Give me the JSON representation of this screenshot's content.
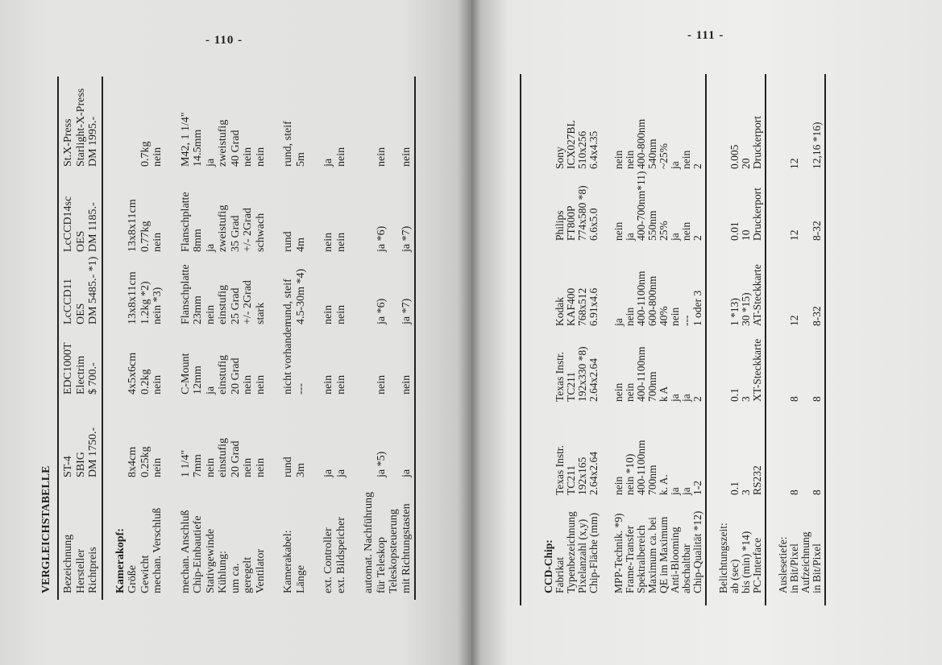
{
  "left_page": {
    "page_number": "- 110 -",
    "table": {
      "title": "VERGLEICHSTABELLE",
      "groups": [
        {
          "rows": [
            {
              "label": "Bezeichnung",
              "values": [
                "ST-4",
                "EDC1000T",
                "LcCCD11",
                "LcCCD14sc",
                "St.X-Press"
              ]
            },
            {
              "label": "Hersteller",
              "values": [
                "SBIG",
                "Electrim",
                "OES",
                "OES",
                "Starlight-X-Press"
              ]
            },
            {
              "label": "Richtpreis",
              "values": [
                "DM 1750.-",
                "$ 700.-",
                "DM 5485.- *1)",
                "DM 1185.-",
                "DM 1995.-"
              ]
            }
          ],
          "rule_after": true
        },
        {
          "rows": [
            {
              "label": "Kamerakopf:",
              "header": true,
              "values": []
            },
            {
              "label": "Größe",
              "values": [
                "8x4cm",
                "4x5x6cm",
                "13x8x11cm",
                "13x8x11cm",
                ""
              ]
            },
            {
              "label": "Gewicht",
              "values": [
                "0.25kg",
                "0.2kg",
                "1.2kg *2)",
                "0.77kg",
                "0.7kg"
              ]
            },
            {
              "label": "mechan. Verschluß",
              "values": [
                "nein",
                "nein",
                "nein *3)",
                "nein",
                "nein"
              ]
            }
          ]
        },
        {
          "rows": [
            {
              "label": "mechan. Anschluß",
              "values": [
                "1 1/4\"",
                "C-Mount",
                "Flanschplatte",
                "Flanschplatte",
                "M42, 1 1/4\""
              ]
            },
            {
              "label": "Chip-Einbautiefe",
              "values": [
                "7mm",
                "12mm",
                "23mm",
                "8mm",
                "14.5mm"
              ]
            },
            {
              "label": "Stativgewinde",
              "values": [
                "nein",
                "ja",
                "nein",
                "ja",
                "ja"
              ]
            },
            {
              "label": "Kühlung:",
              "values": [
                "einstufig",
                "einstufig",
                "einstufig",
                "zweistufig",
                "zweistufig"
              ]
            },
            {
              "label": "um ca.",
              "values": [
                "20 Grad",
                "20 Grad",
                "25 Grad",
                "35 Grad",
                "40 Grad"
              ]
            },
            {
              "label": "geregelt",
              "values": [
                "nein",
                "nein",
                "+/- 2Grad",
                "+/- 2Grad",
                "nein"
              ]
            },
            {
              "label": "Ventilator",
              "values": [
                "nein",
                "nein",
                "stark",
                "schwach",
                "nein"
              ]
            }
          ]
        },
        {
          "rows": [
            {
              "label": "Kamerakabel:",
              "values": [
                "rund",
                "nicht vorhanden",
                "rund, steif",
                "rund",
                "rund, steif"
              ]
            },
            {
              "label": "Länge",
              "values": [
                "3m",
                "---",
                "4.5-30m *4)",
                "4m",
                "5m"
              ]
            }
          ]
        },
        {
          "rows": [
            {
              "label": "ext. Controller",
              "values": [
                "ja",
                "nein",
                "nein",
                "nein",
                "ja"
              ]
            },
            {
              "label": "ext. Bildspeicher",
              "values": [
                "ja",
                "nein",
                "nein",
                "nein",
                "nein"
              ]
            }
          ]
        },
        {
          "rows": [
            {
              "label": "automat. Nachführung",
              "values": []
            },
            {
              "label": "für Teleskop",
              "values": [
                "ja *5)",
                "nein",
                "ja *6)",
                "ja *6)",
                "nein"
              ]
            },
            {
              "label": "Teleskopsteuerung",
              "values": []
            },
            {
              "label": "mit Richtungstasten",
              "values": [
                "ja",
                "nein",
                "ja *7)",
                "ja *7)",
                "nein"
              ]
            }
          ],
          "rule_after": true
        }
      ]
    }
  },
  "right_page": {
    "page_number": "- 111 -",
    "table": {
      "groups": [
        {
          "rows": [
            {
              "label": "CCD-Chip:",
              "header": true,
              "values": []
            },
            {
              "label": "Fabrikat",
              "values": [
                "Texas Instr.",
                "Texas Instr.",
                "Kodak",
                "Philips",
                "Sony"
              ]
            },
            {
              "label": "Typenbezeichnung",
              "values": [
                "TC211",
                "TC211",
                "KAF400",
                "FT800P",
                "ICX027BL"
              ]
            },
            {
              "label": "Pixelanzahl (x,y)",
              "values": [
                "192x165",
                "192x330 *8)",
                "768x512",
                "774x580 *8)",
                "510x256"
              ]
            },
            {
              "label": "Chip-Fläche (mm)",
              "values": [
                "2.64x2.64",
                "2.64x2.64",
                "6.91x4.6",
                "6.6x5.0",
                "6.4x4.35"
              ]
            }
          ]
        },
        {
          "rows": [
            {
              "label": "MPP-Technik. *9)",
              "values": [
                "nein",
                "nein",
                "ja",
                "nein",
                "nein"
              ]
            },
            {
              "label": "Frame-Transfer",
              "values": [
                "nein *10)",
                "nein",
                "nein",
                "ja",
                "nein"
              ]
            },
            {
              "label": "Spektralbereich",
              "values": [
                "400-1100nm",
                "400-1100nm",
                "400-1100nm",
                "400-700nm*11)",
                "400-800nm"
              ]
            },
            {
              "label": "Maximum ca. bei",
              "values": [
                "700nm",
                "700nm",
                "600-800nm",
                "550nm",
                "540nm"
              ]
            },
            {
              "label": "QE im Maximum",
              "values": [
                "k. A.",
                "k A",
                "40%",
                "25%",
                "~25%"
              ]
            },
            {
              "label": "Anti-Blooming",
              "values": [
                "ja",
                "ja",
                "nein",
                "ja",
                "ja"
              ]
            },
            {
              "label": "abschaltbar",
              "values": [
                "ja",
                "ja",
                "---",
                "nein",
                "nein"
              ]
            },
            {
              "label": "Chip-Qualität *12)",
              "values": [
                "1-2",
                "2",
                "1 oder 3",
                "2",
                "2"
              ]
            }
          ],
          "rule_after": true
        },
        {
          "rows": [
            {
              "label": "Belichtungszeit:",
              "values": []
            },
            {
              "label": "ab (sec)",
              "values": [
                "0.1",
                "0.1",
                "1 *13)",
                "0.01",
                "0.005"
              ]
            },
            {
              "label": "bis (min) *14)",
              "values": [
                "3",
                "3",
                "30 *15)",
                "10",
                "20"
              ]
            },
            {
              "label": "PC-Interface",
              "values": [
                "RS232",
                "XT-Steckkarte",
                "AT-Steckkarte",
                "Druckerport",
                "Druckerport"
              ]
            }
          ],
          "rule_after": true
        },
        {
          "rows": [
            {
              "label": "Auslesetiefe:",
              "values": []
            },
            {
              "label": "in Bit/Pixel",
              "values": [
                "8",
                "8",
                "12",
                "12",
                "12"
              ]
            },
            {
              "label": "Aufzeichnung",
              "values": []
            },
            {
              "label": "in Bit/Pixel",
              "values": [
                "8",
                "8",
                "8-32",
                "8-32",
                "12,16 *16)"
              ]
            }
          ],
          "rule_after": true
        }
      ]
    }
  }
}
